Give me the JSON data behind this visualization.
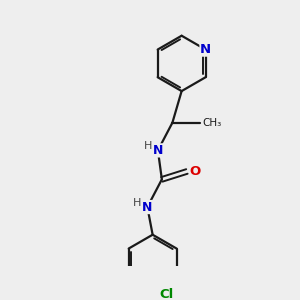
{
  "background_color": "#eeeeee",
  "bond_color": "#1a1a1a",
  "N_color": "#0000cc",
  "O_color": "#dd0000",
  "Cl_color": "#008800",
  "H_color": "#444444",
  "figsize": [
    3.0,
    3.0
  ],
  "dpi": 100,
  "xlim": [
    0,
    10
  ],
  "ylim": [
    0,
    10
  ]
}
